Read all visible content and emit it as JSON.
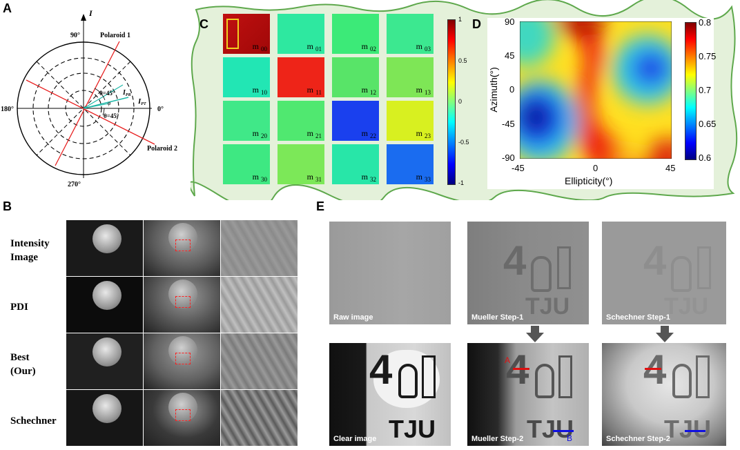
{
  "panel_letters": {
    "a": "A",
    "b": "B",
    "c": "C",
    "d": "D",
    "e": "E"
  },
  "panel_a": {
    "axis_i": "I",
    "angle_90": "90°",
    "angle_180": "180°",
    "angle_0": "0°",
    "angle_270": "270°",
    "polaroid1": "Polaroid 1",
    "polaroid2": "Polaroid 2",
    "theta_up": "θ=45°",
    "theta_down": "θ=45°",
    "i_pr": "I",
    "i_pr_sub": "PR",
    "i_pt": "I",
    "i_pt_sub": "PT",
    "phi": "φ"
  },
  "panel_c": {
    "tiles": [
      {
        "label": "m",
        "sub": "00",
        "color": "#b01010"
      },
      {
        "label": "m",
        "sub": "01",
        "color": "#2ee8a0"
      },
      {
        "label": "m",
        "sub": "02",
        "color": "#3cea78"
      },
      {
        "label": "m",
        "sub": "03",
        "color": "#3ce890"
      },
      {
        "label": "m",
        "sub": "10",
        "color": "#22e6b4"
      },
      {
        "label": "m",
        "sub": "11",
        "color": "#ee2418"
      },
      {
        "label": "m",
        "sub": "12",
        "color": "#58e468"
      },
      {
        "label": "m",
        "sub": "13",
        "color": "#7ee656"
      },
      {
        "label": "m",
        "sub": "20",
        "color": "#40e888"
      },
      {
        "label": "m",
        "sub": "21",
        "color": "#50e870"
      },
      {
        "label": "m",
        "sub": "22",
        "color": "#1a40ee"
      },
      {
        "label": "m",
        "sub": "23",
        "color": "#d8f020"
      },
      {
        "label": "m",
        "sub": "30",
        "color": "#3ee882"
      },
      {
        "label": "m",
        "sub": "31",
        "color": "#7ce858"
      },
      {
        "label": "m",
        "sub": "32",
        "color": "#28e6a8"
      },
      {
        "label": "m",
        "sub": "33",
        "color": "#1a6cf0"
      }
    ],
    "colorbar_ticks": [
      "1",
      "0.5",
      "0",
      "-0.5",
      "-1"
    ]
  },
  "panel_d": {
    "ylabel": "Azimuth(°)",
    "xlabel": "Ellipticity(°)",
    "yticks": [
      "90",
      "45",
      "0",
      "-45",
      "-90"
    ],
    "xticks": [
      "-45",
      "0",
      "45"
    ],
    "colorbar_ticks": [
      "0.8",
      "0.75",
      "0.7",
      "0.65",
      "0.6"
    ]
  },
  "panel_b": {
    "rows": [
      {
        "l1": "Intensity",
        "l2": "Image"
      },
      {
        "l1": "PDI",
        "l2": ""
      },
      {
        "l1": "Best",
        "l2": "(Our)"
      },
      {
        "l1": "Schechner",
        "l2": ""
      }
    ]
  },
  "panel_e": {
    "top": [
      "Raw image",
      "Mueller Step-1",
      "Schechner  Step-1"
    ],
    "bottom": [
      "Clear image",
      "Mueller Step-2",
      "Schechner Step-2"
    ],
    "tile_text": "4",
    "tju": "TJU",
    "marker_a": "A",
    "marker_b": "B"
  }
}
